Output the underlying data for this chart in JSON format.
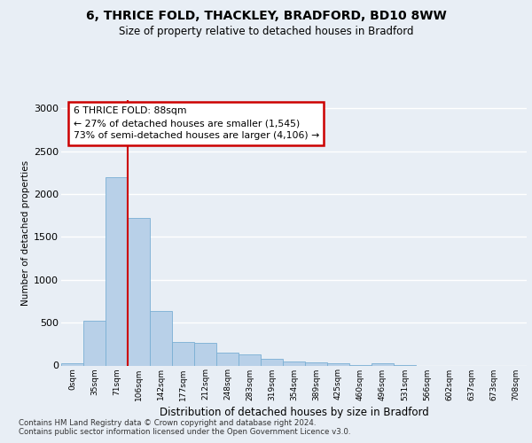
{
  "title_line1": "6, THRICE FOLD, THACKLEY, BRADFORD, BD10 8WW",
  "title_line2": "Size of property relative to detached houses in Bradford",
  "xlabel": "Distribution of detached houses by size in Bradford",
  "ylabel": "Number of detached properties",
  "bar_color": "#b8d0e8",
  "bar_edge_color": "#7aafd4",
  "vline_color": "#cc0000",
  "categories": [
    "0sqm",
    "35sqm",
    "71sqm",
    "106sqm",
    "142sqm",
    "177sqm",
    "212sqm",
    "248sqm",
    "283sqm",
    "319sqm",
    "354sqm",
    "389sqm",
    "425sqm",
    "460sqm",
    "496sqm",
    "531sqm",
    "566sqm",
    "602sqm",
    "637sqm",
    "673sqm",
    "708sqm"
  ],
  "values": [
    30,
    525,
    2195,
    1725,
    635,
    275,
    265,
    145,
    125,
    75,
    50,
    35,
    28,
    5,
    22,
    5,
    0,
    0,
    0,
    0,
    0
  ],
  "ylim": [
    0,
    3100
  ],
  "yticks": [
    0,
    500,
    1000,
    1500,
    2000,
    2500,
    3000
  ],
  "annotation_text": "6 THRICE FOLD: 88sqm\n← 27% of detached houses are smaller (1,545)\n73% of semi-detached houses are larger (4,106) →",
  "vline_idx": 2.5,
  "background_color": "#e8eef5",
  "grid_color": "#ffffff",
  "footer_text": "Contains HM Land Registry data © Crown copyright and database right 2024.\nContains public sector information licensed under the Open Government Licence v3.0."
}
